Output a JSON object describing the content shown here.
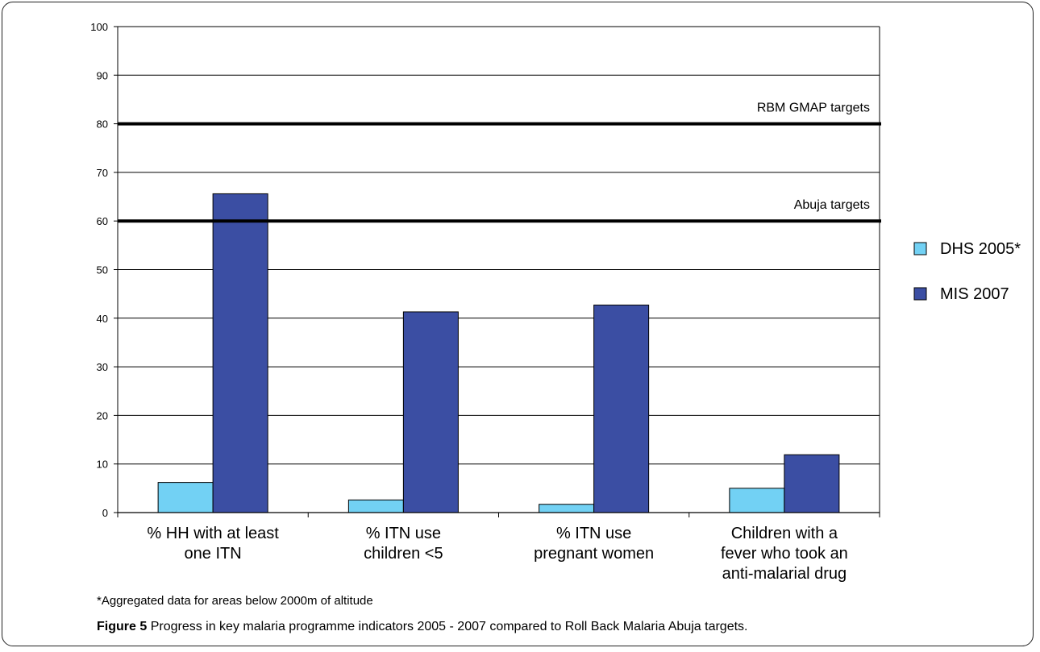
{
  "chart_data": {
    "type": "bar",
    "categories": [
      [
        "% HH with at least",
        "one ITN"
      ],
      [
        "% ITN use",
        "children <5"
      ],
      [
        "% ITN use",
        "pregnant women"
      ],
      [
        "Children with a",
        "fever who took an",
        "anti-malarial drug"
      ]
    ],
    "series": [
      {
        "name": "DHS 2005*",
        "color": "#72d1f4",
        "values": [
          6.2,
          2.6,
          1.7,
          5.0
        ]
      },
      {
        "name": "MIS 2007",
        "color": "#3b4ea3",
        "values": [
          65.6,
          41.3,
          42.7,
          11.9
        ]
      }
    ],
    "ylim": [
      0,
      100
    ],
    "yticks": [
      0,
      10,
      20,
      30,
      40,
      50,
      60,
      70,
      80,
      90,
      100
    ],
    "grid": true,
    "legend": "right",
    "reference_lines": [
      {
        "label": "RBM GMAP targets",
        "value": 80
      },
      {
        "label": "Abuja targets",
        "value": 60
      }
    ]
  },
  "footnote": "*Aggregated data for areas below 2000m of altitude",
  "caption": {
    "label": "Figure 5",
    "text": "Progress in key malaria programme indicators 2005 - 2007 compared to Roll Back Malaria Abuja targets",
    "end": "."
  }
}
